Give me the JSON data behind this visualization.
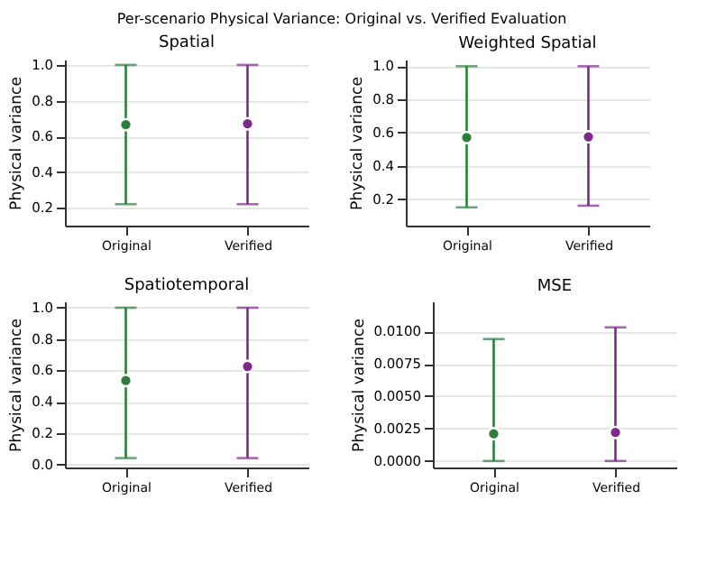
{
  "chart_data": [
    {
      "type": "scatter",
      "title": "Spatial",
      "ylabel": "Physical variance",
      "annotations": [
        "Per-scenario Physical Variance: Original vs. Verified Evaluation"
      ],
      "categories": [
        "Original",
        "Verified"
      ],
      "colors": [
        "#2e7d3a",
        "#7d2a8a"
      ],
      "marker": "circle",
      "values": [
        0.665,
        0.67
      ],
      "errors": [
        [
          0.22,
          1.0
        ],
        [
          0.22,
          1.0
        ]
      ],
      "ylim": [
        0.1,
        1.03
      ],
      "yticks": [
        {
          "value": 0.2,
          "label": "0.2"
        },
        {
          "value": 0.4,
          "label": "0.4"
        },
        {
          "value": 0.6,
          "label": "0.6"
        },
        {
          "value": 0.8,
          "label": "0.8"
        },
        {
          "value": 1.0,
          "label": "1.0"
        }
      ],
      "grid": "y"
    },
    {
      "type": "scatter",
      "title": "Weighted Spatial",
      "ylabel": "Physical variance",
      "categories": [
        "Original",
        "Verified"
      ],
      "colors": [
        "#2e7d3a",
        "#7d2a8a"
      ],
      "marker": "circle",
      "values": [
        0.57,
        0.575
      ],
      "errors": [
        [
          0.15,
          1.0
        ],
        [
          0.16,
          1.0
        ]
      ],
      "ylim": [
        0.04,
        1.04
      ],
      "yticks": [
        {
          "value": 0.2,
          "label": "0.2"
        },
        {
          "value": 0.4,
          "label": "0.4"
        },
        {
          "value": 0.6,
          "label": "0.6"
        },
        {
          "value": 0.8,
          "label": "0.8"
        },
        {
          "value": 1.0,
          "label": "1.0"
        }
      ],
      "grid": "y"
    },
    {
      "type": "scatter",
      "title": "Spatiotemporal",
      "ylabel": "Physical variance",
      "categories": [
        "Original",
        "Verified"
      ],
      "colors": [
        "#2e7d3a",
        "#7d2a8a"
      ],
      "marker": "circle",
      "values": [
        0.535,
        0.625
      ],
      "errors": [
        [
          0.04,
          1.0
        ],
        [
          0.04,
          1.0
        ]
      ],
      "ylim": [
        -0.02,
        1.04
      ],
      "yticks": [
        {
          "value": 0,
          "label": "0.0"
        },
        {
          "value": 0.2,
          "label": "0.2"
        },
        {
          "value": 0.4,
          "label": "0.4"
        },
        {
          "value": 0.6,
          "label": "0.6"
        },
        {
          "value": 0.8,
          "label": "0.8"
        },
        {
          "value": 1.0,
          "label": "1.0"
        }
      ],
      "grid": "y"
    },
    {
      "type": "scatter",
      "title": "MSE",
      "ylabel": "Physical variance",
      "categories": [
        "Original",
        "Verified"
      ],
      "colors": [
        "#2e7d3a",
        "#7d2a8a"
      ],
      "marker": "circle",
      "values": [
        0.0021,
        0.0022
      ],
      "errors": [
        [
          0.0,
          0.0094
        ],
        [
          0.0,
          0.0103
        ]
      ],
      "ylim": [
        -0.0005,
        0.0123
      ],
      "yticks": [
        {
          "value": 0,
          "label": "0.0000"
        },
        {
          "value": 0.0025,
          "label": "0.0025"
        },
        {
          "value": 0.005,
          "label": "0.0050"
        },
        {
          "value": 0.0075,
          "label": "0.0075"
        },
        {
          "value": 0.01,
          "label": "0.0100"
        }
      ],
      "grid": "y"
    }
  ]
}
